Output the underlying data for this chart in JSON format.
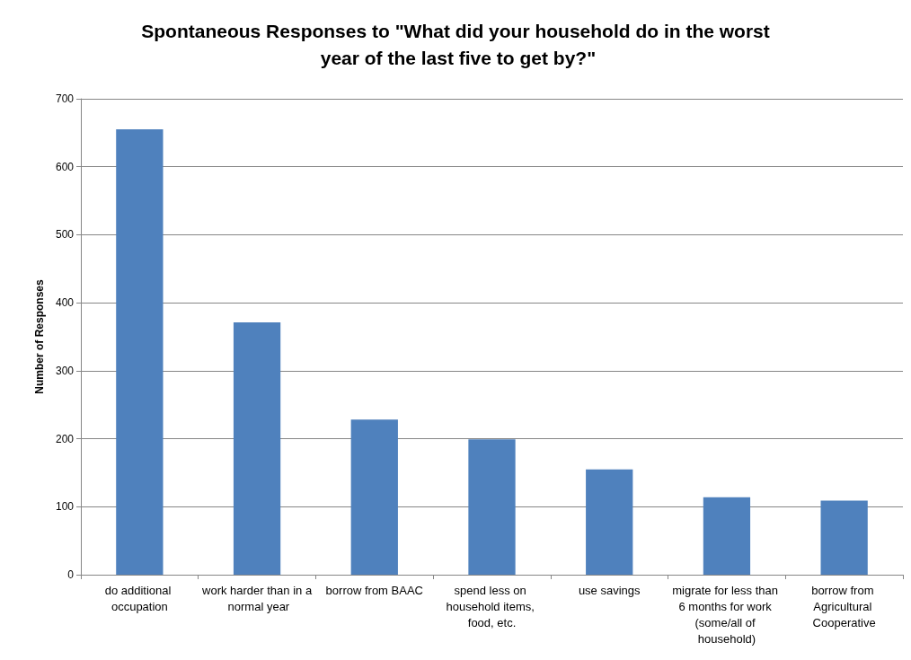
{
  "chart_data": {
    "type": "bar",
    "title": "Spontaneous Responses to \"What did your household do in the worst year of the last five to get by?\"",
    "ylabel": "Number of Responses",
    "categories": [
      "do additional occupation",
      "work harder than in a normal year",
      "borrow from BAAC",
      "spend less on household items, food, etc.",
      "use savings",
      "migrate for less than 6 months for work (some/all of household)",
      "borrow from Agricultural Cooperative"
    ],
    "values": [
      655,
      371,
      228,
      199,
      155,
      114,
      109
    ],
    "color": "#4f81bd",
    "ylim": [
      0,
      700
    ],
    "yticks": [
      0,
      100,
      200,
      300,
      400,
      500,
      600,
      700
    ],
    "grid": "y"
  }
}
